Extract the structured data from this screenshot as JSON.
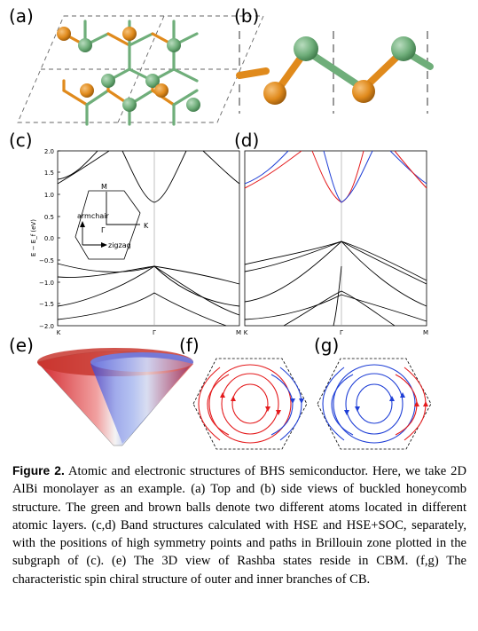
{
  "panels": {
    "a": "(a)",
    "b": "(b)",
    "c": "(c)",
    "d": "(d)",
    "e": "(e)",
    "f": "(f)",
    "g": "(g)"
  },
  "chart_data": [
    {
      "panel": "c",
      "type": "line",
      "ylabel": "E − E_f (eV)",
      "ylim": [
        -2.0,
        2.0
      ],
      "yticks": [
        "2.0",
        "1.5",
        "1.0",
        "0.5",
        "0.0",
        "−0.5",
        "−1.0",
        "−1.5",
        "−2.0"
      ],
      "xticks": [
        "K",
        "Γ",
        "M"
      ],
      "inset": {
        "labels": {
          "M": "M",
          "K": "K",
          "G": "Γ"
        },
        "axes": {
          "up": "armchair",
          "right": "zigzag"
        }
      },
      "colors": {
        "bands": "#000000"
      }
    },
    {
      "panel": "d",
      "type": "line",
      "ylim": [
        -2.0,
        2.0
      ],
      "xticks": [
        "K",
        "Γ",
        "M"
      ],
      "colors": {
        "spin_up": "#e41a1c",
        "spin_down": "#1f3fd6",
        "valence": "#000000"
      }
    }
  ],
  "colors": {
    "green_atom": "#6fae7a",
    "brown_atom": "#e08a1c",
    "red": "#e41a1c",
    "blue": "#1f3fd6"
  },
  "caption": {
    "figure_label": "Figure 2.",
    "text": " Atomic and electronic structures of BHS semiconductor. Here, we take 2D AlBi monolayer as an example. (a) Top and (b) side views of buckled honeycomb structure. The green and brown balls denote two different atoms located in different atomic layers. (c,d) Band structures calculated with HSE and HSE+SOC, separately, with the positions of high symmetry points and paths in Brillouin zone plotted in the subgraph of (c). (e) The 3D view of Rashba states reside in CBM. (f,g) The characteristic spin chiral structure of outer and inner branches of CB."
  }
}
